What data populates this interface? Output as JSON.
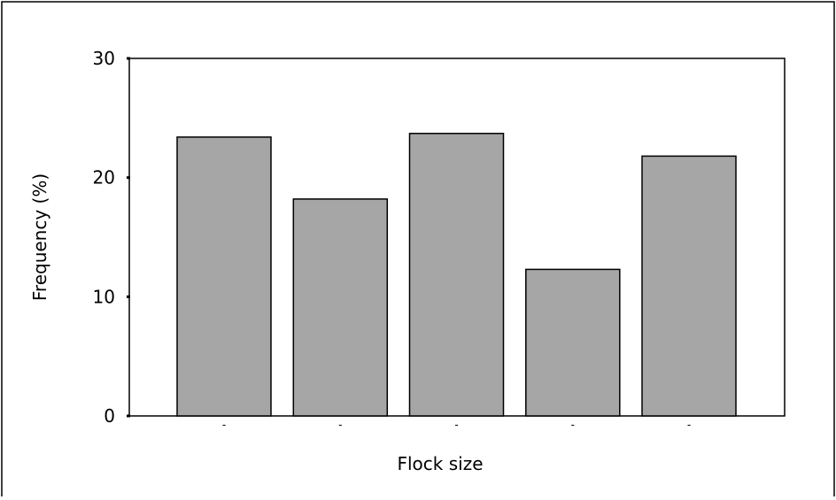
{
  "chart_data": {
    "type": "bar",
    "title": "",
    "xlabel": "Flock size",
    "ylabel": "Frequency (%)",
    "categories": [
      "-",
      "-",
      "-",
      "-",
      "-"
    ],
    "values": [
      23.4,
      18.2,
      23.7,
      12.3,
      21.8
    ],
    "ylim": [
      0,
      30
    ],
    "yticks": [
      0,
      10,
      20,
      30
    ],
    "grid": false,
    "legend": "none",
    "colors": {
      "bar_fill": "#a6a6a6",
      "bar_stroke": "#000000",
      "frame": "#000000",
      "background": "#ffffff"
    }
  }
}
